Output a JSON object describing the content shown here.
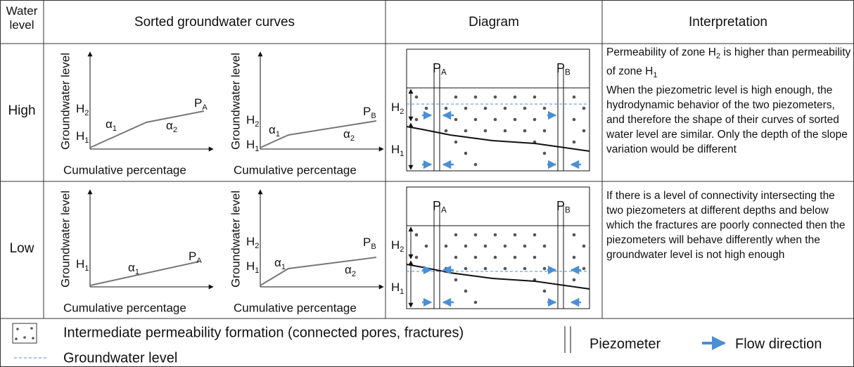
{
  "header": {
    "water_level": "Water level",
    "curves": "Sorted groundwater curves",
    "diagram": "Diagram",
    "interpretation": "Interpretation"
  },
  "rows": [
    {
      "level": "High",
      "curves": [
        {
          "y_label": "Groundwater level",
          "x_label": "Cumulative percentage",
          "h2": {
            "base": "H",
            "sub": "2"
          },
          "h1": {
            "base": "H",
            "sub": "1"
          },
          "alpha1": {
            "base": "α",
            "sub": "1"
          },
          "alpha2": {
            "base": "α",
            "sub": "2"
          },
          "piezometer": {
            "base": "P",
            "sub": "A"
          }
        },
        {
          "y_label": "Groundwater level",
          "x_label": "Cumulative percentage",
          "h2": {
            "base": "H",
            "sub": "2"
          },
          "h1": {
            "base": "H",
            "sub": "1"
          },
          "alpha1": {
            "base": "α",
            "sub": "1"
          },
          "alpha2": {
            "base": "α",
            "sub": "2"
          },
          "piezometer": {
            "base": "P",
            "sub": "B"
          }
        }
      ],
      "diagram": {
        "pa": {
          "base": "P",
          "sub": "A"
        },
        "pb": {
          "base": "P",
          "sub": "B"
        },
        "h2": {
          "base": "H",
          "sub": "2"
        },
        "h1": {
          "base": "H",
          "sub": "1"
        }
      },
      "interpretation": [
        [
          {
            "text": "Permeability of zone H"
          },
          {
            "sub": "2"
          },
          {
            "text": " is higher than permeability of zone H"
          },
          {
            "sub": "1"
          }
        ],
        [
          {
            "text": "When the piezometric level is high enough, the hydrodynamic behavior of the two piezometers, and therefore the shape of their curves of sorted water level are similar. Only the depth of the slope variation would be different"
          }
        ]
      ]
    },
    {
      "level": "Low",
      "curves": [
        {
          "y_label": "Groundwater level",
          "x_label": "Cumulative percentage",
          "h1": {
            "base": "H",
            "sub": "1"
          },
          "alpha1": {
            "base": "α",
            "sub": "1"
          },
          "piezometer": {
            "base": "P",
            "sub": "A"
          }
        },
        {
          "y_label": "Groundwater level",
          "x_label": "Cumulative percentage",
          "h2": {
            "base": "H",
            "sub": "2"
          },
          "h1": {
            "base": "H",
            "sub": "1"
          },
          "alpha1": {
            "base": "α",
            "sub": "1"
          },
          "alpha2": {
            "base": "α",
            "sub": "2"
          },
          "piezometer": {
            "base": "P",
            "sub": "B"
          }
        }
      ],
      "diagram": {
        "pa": {
          "base": "P",
          "sub": "A"
        },
        "pb": {
          "base": "P",
          "sub": "B"
        },
        "h2": {
          "base": "H",
          "sub": "2"
        },
        "h1": {
          "base": "H",
          "sub": "1"
        }
      },
      "interpretation": [
        [
          {
            "text": "If there is a level of connectivity intersecting the two piezometers at different depths and below which the fractures are poorly connected then the piezometers will behave differently when the groundwater level is not high enough"
          }
        ]
      ]
    }
  ],
  "legend": {
    "formation": "Intermediate permeability formation (connected pores, fractures)",
    "groundwater_level": "Groundwater level",
    "piezometer": "Piezometer",
    "flow_direction": "Flow direction"
  }
}
